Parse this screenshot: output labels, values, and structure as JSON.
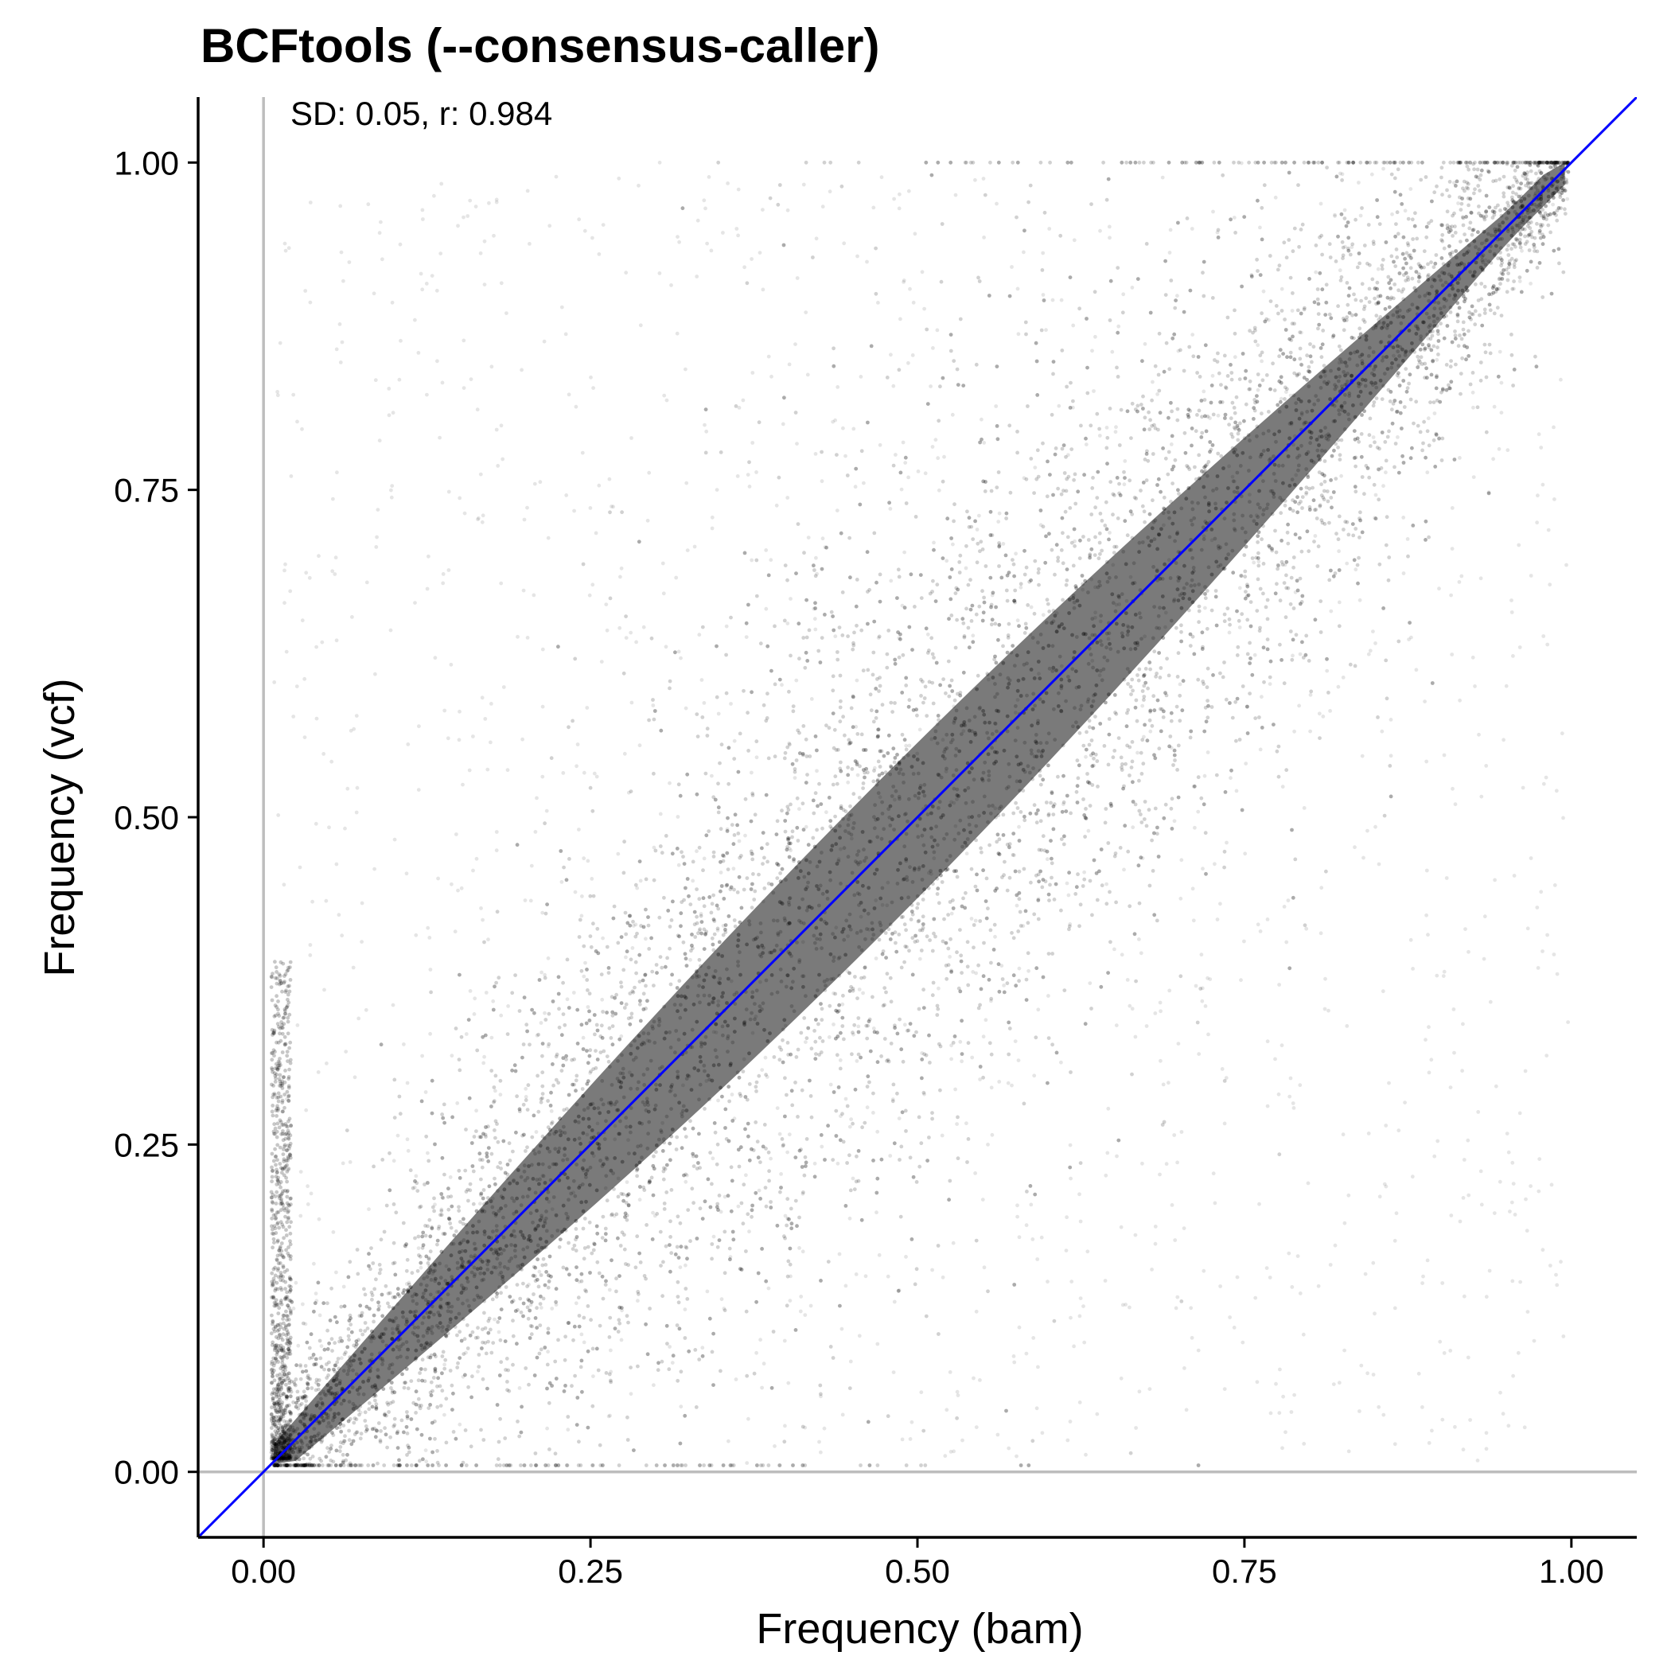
{
  "chart_data": {
    "type": "scatter",
    "title": "BCFtools (--consensus-caller)",
    "annotation": "SD: 0.05, r: 0.984",
    "xlabel": "Frequency (bam)",
    "ylabel": "Frequency (vcf)",
    "xlim": [
      -0.05,
      1.05
    ],
    "ylim": [
      -0.05,
      1.05
    ],
    "x_ticks": [
      0.0,
      0.25,
      0.5,
      0.75,
      1.0
    ],
    "x_tick_labels": [
      "0.00",
      "0.25",
      "0.50",
      "0.75",
      "1.00"
    ],
    "y_ticks": [
      0.0,
      0.25,
      0.5,
      0.75,
      1.0
    ],
    "y_tick_labels": [
      "0.00",
      "0.25",
      "0.50",
      "0.75",
      "1.00"
    ],
    "reference_lines": [
      {
        "type": "vline",
        "x": 0,
        "color": "#bdbdbd"
      },
      {
        "type": "hline",
        "y": 0,
        "color": "#bdbdbd"
      },
      {
        "type": "abline",
        "slope": 1,
        "intercept": 0,
        "color": "#0000ff"
      }
    ],
    "point_color": "#000000",
    "point_alpha": 0.1,
    "series": [
      {
        "points_summary": "dense scatter of many points concentrated along the y = x diagonal from (0,0) to (1,1), spreading wider in the middle range; sparse points fill the upper-left and lower-right triangles",
        "sd": 0.05,
        "r": 0.984
      }
    ],
    "grid": false,
    "legend": "none"
  }
}
